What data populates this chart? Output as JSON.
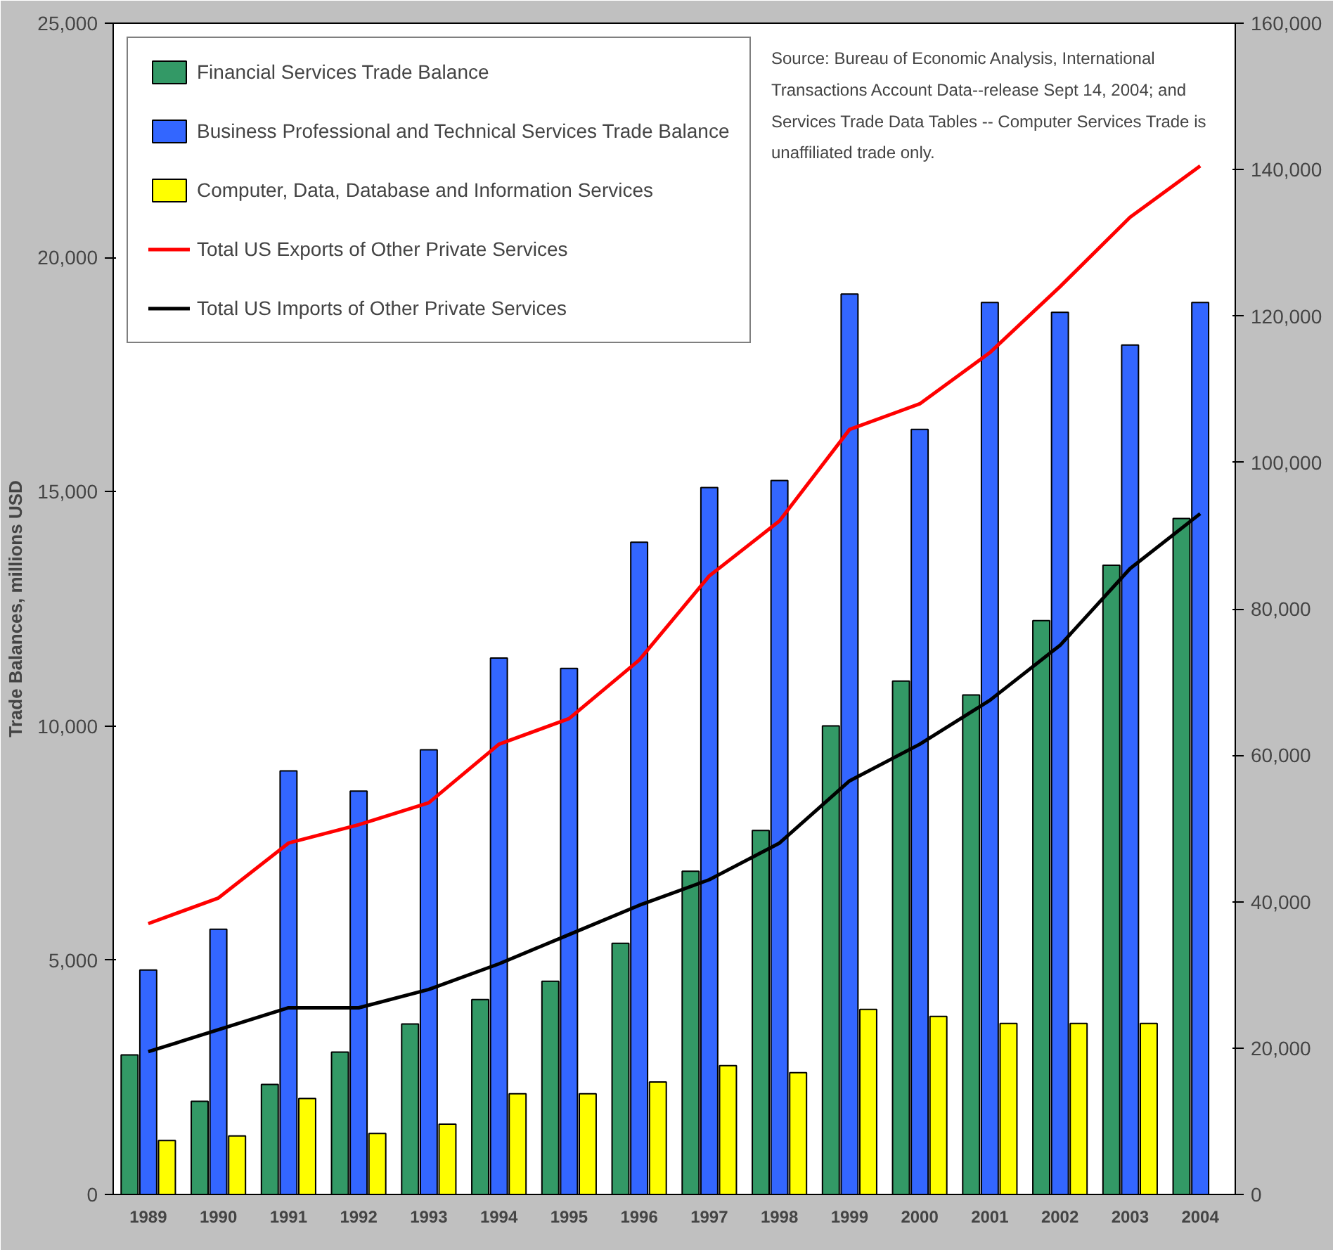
{
  "chart_data": {
    "type": "bar",
    "ylabel": "Trade Balances, millions USD",
    "categories": [
      "1989",
      "1990",
      "1991",
      "1992",
      "1993",
      "1994",
      "1995",
      "1996",
      "1997",
      "1998",
      "1999",
      "2000",
      "2001",
      "2002",
      "2003",
      "2004"
    ],
    "series": [
      {
        "name": "Financial Services Trade Balance",
        "color": "#339966",
        "values": [
          2980,
          1990,
          2350,
          3040,
          3640,
          4160,
          4550,
          5360,
          6900,
          7770,
          10000,
          10960,
          10660,
          12250,
          13430,
          14430
        ]
      },
      {
        "name": "Business Professional and Technical Services Trade Balance",
        "color": "#3366ff",
        "values": [
          4790,
          5660,
          9040,
          8610,
          9490,
          11450,
          11230,
          13920,
          15090,
          15240,
          19220,
          16330,
          19040,
          18830,
          18130,
          19040
        ]
      },
      {
        "name": "Computer, Data, Database and Information Services",
        "color": "#ffff00",
        "values": [
          1150,
          1250,
          2050,
          1300,
          1500,
          2150,
          2150,
          2400,
          2750,
          2600,
          3950,
          3800,
          3650,
          3650,
          3650,
          null
        ]
      },
      {
        "name": "Total US Exports of Other Private Services",
        "type": "line",
        "axis": "y2",
        "color": "#ff0000",
        "values": [
          37000,
          40500,
          48000,
          50500,
          53500,
          61500,
          65000,
          73000,
          84500,
          92000,
          104500,
          108000,
          115000,
          124000,
          133500,
          140500
        ]
      },
      {
        "name": "Total US Imports of Other Private Services",
        "type": "line",
        "axis": "y2",
        "color": "#000000",
        "values": [
          19500,
          22500,
          25500,
          25500,
          28000,
          31500,
          35500,
          39500,
          43000,
          48000,
          56500,
          61500,
          67500,
          75000,
          85500,
          93000
        ]
      }
    ],
    "ylim": [
      0,
      25000
    ],
    "yticks": [
      0,
      {
        "value": 5000,
        "label": "5,000"
      },
      {
        "value": 10000,
        "label": "10,000"
      },
      {
        "value": 15000,
        "label": "15,000"
      },
      {
        "value": 20000,
        "label": "20,000"
      },
      {
        "value": 25000,
        "label": "25,000"
      }
    ],
    "y2lim": [
      0,
      160000
    ],
    "y2ticks": [
      0,
      {
        "value": 20000,
        "label": "20,000"
      },
      {
        "value": 40000,
        "label": "40,000"
      },
      {
        "value": 60000,
        "label": "60,000"
      },
      {
        "value": 80000,
        "label": "80,000"
      },
      {
        "value": 100000,
        "label": "100,000"
      },
      {
        "value": 120000,
        "label": "120,000"
      },
      {
        "value": 140000,
        "label": "140,000"
      },
      {
        "value": 160000,
        "label": "160,000"
      }
    ],
    "annotations": [
      "Source: Bureau of Economic Analysis, International Transactions Account Data--release Sept 14, 2004; and Services Trade Data Tables -- Computer Services Trade is unaffiliated trade only."
    ],
    "grid": false,
    "legend": "top left",
    "marker": "none",
    "line_style": "solid"
  }
}
